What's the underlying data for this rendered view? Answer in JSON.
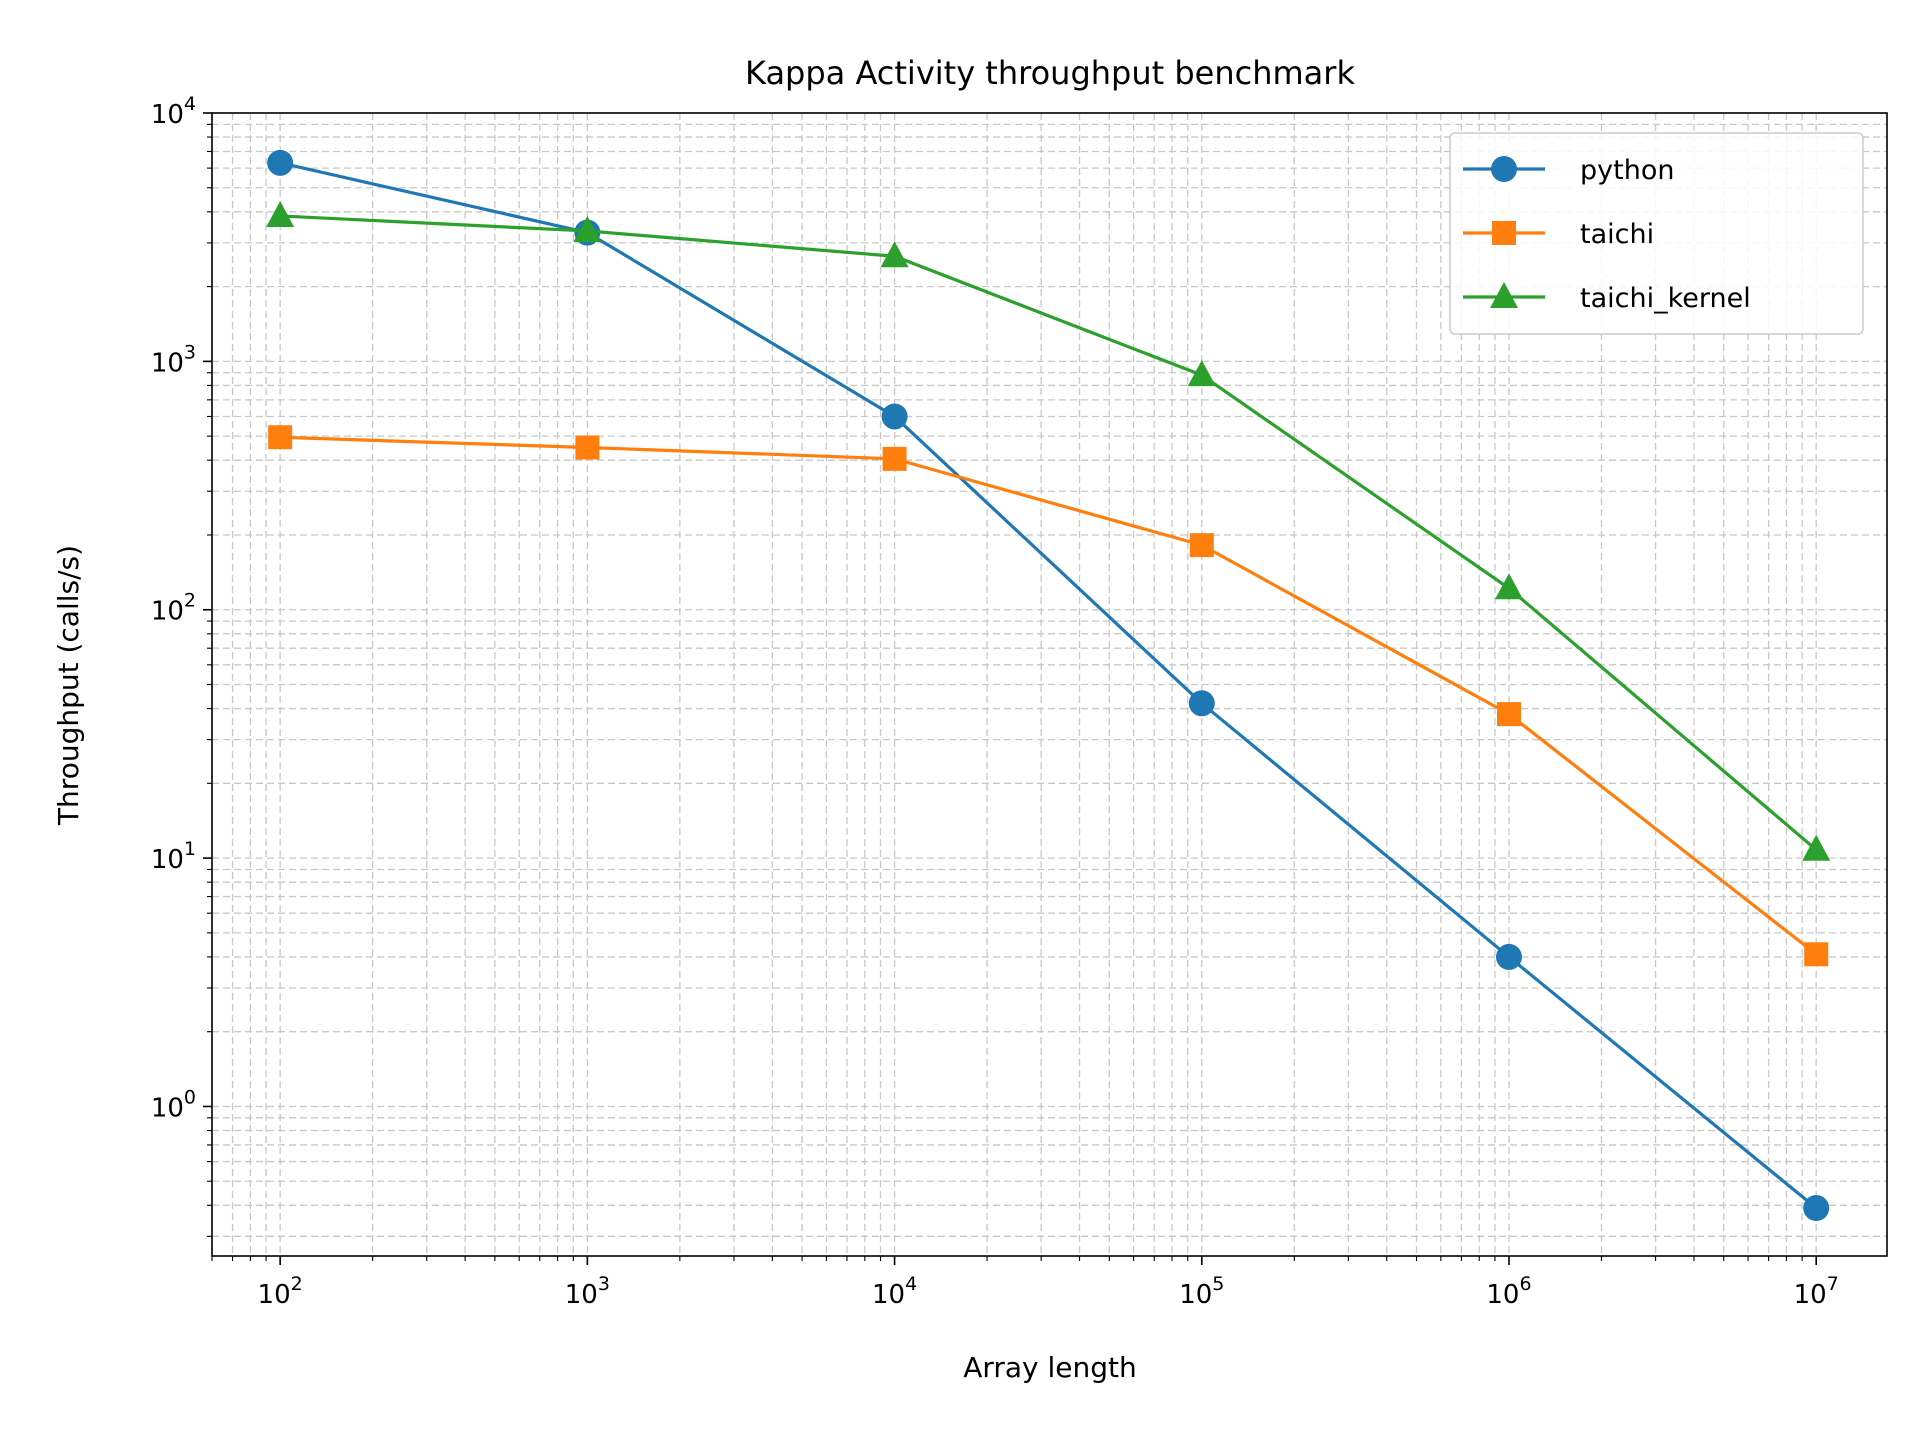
{
  "chart_data": {
    "type": "line",
    "title": "Kappa Activity throughput benchmark",
    "xlabel": "Array length",
    "ylabel": "Throughput (calls/s)",
    "xscale": "log",
    "yscale": "log",
    "xlim": [
      60,
      17000000
    ],
    "ylim": [
      0.25,
      10000
    ],
    "grid": true,
    "legend_position": "top-right",
    "x": [
      100,
      1000,
      10000,
      100000,
      1000000,
      10000000
    ],
    "x_ticks": [
      {
        "base": "10",
        "exp": "2",
        "value": 100
      },
      {
        "base": "10",
        "exp": "3",
        "value": 1000
      },
      {
        "base": "10",
        "exp": "4",
        "value": 10000
      },
      {
        "base": "10",
        "exp": "5",
        "value": 100000
      },
      {
        "base": "10",
        "exp": "6",
        "value": 1000000
      },
      {
        "base": "10",
        "exp": "7",
        "value": 10000000
      }
    ],
    "y_ticks": [
      {
        "base": "10",
        "exp": "0",
        "value": 1
      },
      {
        "base": "10",
        "exp": "1",
        "value": 10
      },
      {
        "base": "10",
        "exp": "2",
        "value": 100
      },
      {
        "base": "10",
        "exp": "3",
        "value": 1000
      },
      {
        "base": "10",
        "exp": "4",
        "value": 10000
      }
    ],
    "series": [
      {
        "name": "python",
        "color": "#1f77b4",
        "marker": "circle",
        "values": [
          6300,
          3300,
          600,
          42,
          4.0,
          0.39
        ]
      },
      {
        "name": "taichi",
        "color": "#ff7f0e",
        "marker": "square",
        "values": [
          495,
          450,
          405,
          182,
          38,
          4.1
        ]
      },
      {
        "name": "taichi_kernel",
        "color": "#2ca02c",
        "marker": "triangle",
        "values": [
          3850,
          3350,
          2650,
          880,
          122,
          10.8
        ]
      }
    ]
  }
}
